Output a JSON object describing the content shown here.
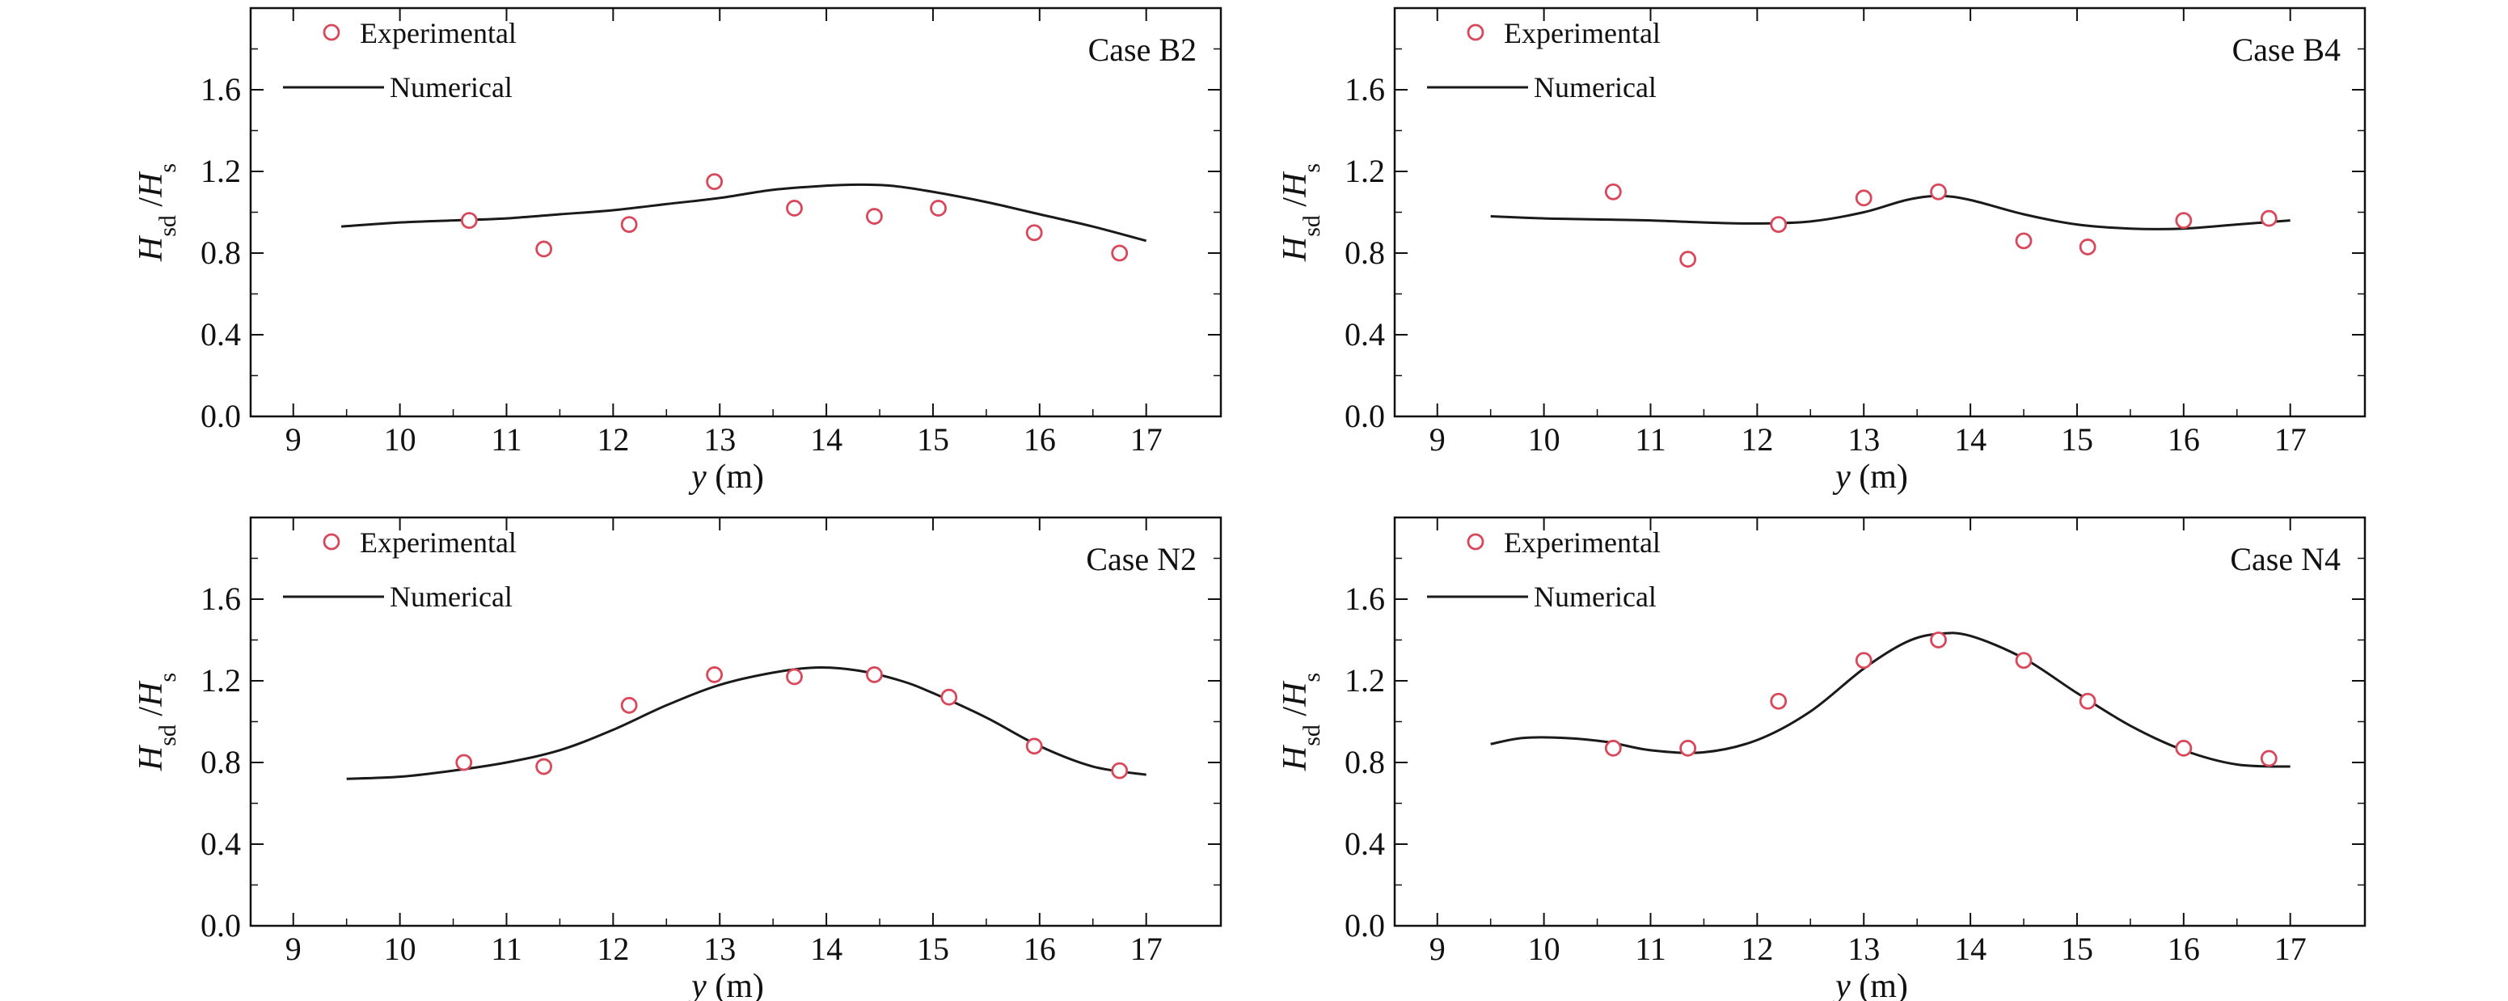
{
  "chart_data": [
    {
      "type": "scatter",
      "case_label": "Case B2",
      "xlabel": {
        "var": "y",
        "unit": " (m)"
      },
      "ylabel": {
        "main": "H",
        "sub1": "sd",
        "sep": " /",
        "main2": "H",
        "sub2": "s"
      },
      "xlim": [
        8.6,
        17.7
      ],
      "ylim": [
        0,
        2.0
      ],
      "xticks": [
        9,
        10,
        11,
        12,
        13,
        14,
        15,
        16,
        17
      ],
      "yticks": [
        0.0,
        0.4,
        0.8,
        1.2,
        1.6
      ],
      "ytick_labels": [
        "0.0",
        "0.4",
        "0.8",
        "1.2",
        "1.6"
      ],
      "legend": {
        "experimental": "Experimental",
        "numerical": "Numerical"
      },
      "experimental": {
        "x": [
          10.65,
          11.35,
          12.15,
          12.95,
          13.7,
          14.45,
          15.05,
          15.95,
          16.75
        ],
        "y": [
          0.96,
          0.82,
          0.94,
          1.15,
          1.02,
          0.98,
          1.02,
          0.9,
          0.8
        ]
      },
      "numerical": {
        "x": [
          9.45,
          10.0,
          10.5,
          11.0,
          11.5,
          12.0,
          12.5,
          13.0,
          13.5,
          14.0,
          14.3,
          14.6,
          15.0,
          15.5,
          16.0,
          16.5,
          17.0
        ],
        "y": [
          0.93,
          0.95,
          0.96,
          0.97,
          0.99,
          1.01,
          1.04,
          1.07,
          1.11,
          1.13,
          1.135,
          1.13,
          1.1,
          1.05,
          0.99,
          0.93,
          0.86
        ]
      }
    },
    {
      "type": "scatter",
      "case_label": "Case B4",
      "xlabel": {
        "var": "y",
        "unit": " (m)"
      },
      "ylabel": {
        "main": "H",
        "sub1": "sd",
        "sep": " /",
        "main2": "H",
        "sub2": "s"
      },
      "xlim": [
        8.6,
        17.7
      ],
      "ylim": [
        0,
        2.0
      ],
      "xticks": [
        9,
        10,
        11,
        12,
        13,
        14,
        15,
        16,
        17
      ],
      "yticks": [
        0.0,
        0.4,
        0.8,
        1.2,
        1.6
      ],
      "ytick_labels": [
        "0.0",
        "0.4",
        "0.8",
        "1.2",
        "1.6"
      ],
      "legend": {
        "experimental": "Experimental",
        "numerical": "Numerical"
      },
      "experimental": {
        "x": [
          10.65,
          11.35,
          12.2,
          13.0,
          13.7,
          14.5,
          15.1,
          16.0,
          16.8
        ],
        "y": [
          1.1,
          0.77,
          0.94,
          1.07,
          1.1,
          0.86,
          0.83,
          0.96,
          0.97
        ]
      },
      "numerical": {
        "x": [
          9.5,
          10.0,
          10.5,
          11.0,
          11.5,
          12.0,
          12.5,
          13.0,
          13.4,
          13.7,
          14.0,
          14.5,
          15.0,
          15.5,
          16.0,
          16.5,
          17.0
        ],
        "y": [
          0.98,
          0.97,
          0.965,
          0.96,
          0.95,
          0.945,
          0.955,
          1.0,
          1.06,
          1.08,
          1.06,
          0.99,
          0.94,
          0.92,
          0.92,
          0.94,
          0.96
        ]
      }
    },
    {
      "type": "scatter",
      "case_label": "Case N2",
      "xlabel": {
        "var": "y",
        "unit": " (m)"
      },
      "ylabel": {
        "main": "H",
        "sub1": "sd",
        "sep": " /",
        "main2": "H",
        "sub2": "s"
      },
      "xlim": [
        8.6,
        17.7
      ],
      "ylim": [
        0,
        2.0
      ],
      "xticks": [
        9,
        10,
        11,
        12,
        13,
        14,
        15,
        16,
        17
      ],
      "yticks": [
        0.0,
        0.4,
        0.8,
        1.2,
        1.6
      ],
      "ytick_labels": [
        "0.0",
        "0.4",
        "0.8",
        "1.2",
        "1.6"
      ],
      "legend": {
        "experimental": "Experimental",
        "numerical": "Numerical"
      },
      "experimental": {
        "x": [
          10.6,
          11.35,
          12.15,
          12.95,
          13.7,
          14.45,
          15.15,
          15.95,
          16.75
        ],
        "y": [
          0.8,
          0.78,
          1.08,
          1.23,
          1.22,
          1.23,
          1.12,
          0.88,
          0.76
        ]
      },
      "numerical": {
        "x": [
          9.5,
          10.0,
          10.5,
          11.0,
          11.5,
          12.0,
          12.5,
          13.0,
          13.5,
          13.9,
          14.3,
          14.7,
          15.0,
          15.5,
          16.0,
          16.5,
          17.0
        ],
        "y": [
          0.72,
          0.73,
          0.76,
          0.8,
          0.86,
          0.96,
          1.08,
          1.18,
          1.24,
          1.265,
          1.25,
          1.2,
          1.14,
          1.02,
          0.88,
          0.78,
          0.74
        ]
      }
    },
    {
      "type": "scatter",
      "case_label": "Case N4",
      "xlabel": {
        "var": "y",
        "unit": " (m)"
      },
      "ylabel": {
        "main": "H",
        "sub1": "sd",
        "sep": " /",
        "main2": "H",
        "sub2": "s"
      },
      "xlim": [
        8.6,
        17.7
      ],
      "ylim": [
        0,
        2.0
      ],
      "xticks": [
        9,
        10,
        11,
        12,
        13,
        14,
        15,
        16,
        17
      ],
      "yticks": [
        0.0,
        0.4,
        0.8,
        1.2,
        1.6
      ],
      "ytick_labels": [
        "0.0",
        "0.4",
        "0.8",
        "1.2",
        "1.6"
      ],
      "legend": {
        "experimental": "Experimental",
        "numerical": "Numerical"
      },
      "experimental": {
        "x": [
          10.65,
          11.35,
          12.2,
          13.0,
          13.7,
          14.5,
          15.1,
          16.0,
          16.8
        ],
        "y": [
          0.87,
          0.87,
          1.1,
          1.3,
          1.4,
          1.3,
          1.1,
          0.87,
          0.82
        ]
      },
      "numerical": {
        "x": [
          9.5,
          9.8,
          10.2,
          10.6,
          11.0,
          11.5,
          12.0,
          12.5,
          13.0,
          13.4,
          13.7,
          14.0,
          14.5,
          15.0,
          15.5,
          16.0,
          16.5,
          17.0
        ],
        "y": [
          0.89,
          0.92,
          0.92,
          0.9,
          0.86,
          0.85,
          0.91,
          1.05,
          1.26,
          1.39,
          1.43,
          1.42,
          1.31,
          1.14,
          0.98,
          0.86,
          0.79,
          0.78
        ]
      }
    }
  ],
  "style": {
    "marker_color": "#d9475a",
    "line_color": "#1a1a1a",
    "axis_color": "#111111"
  }
}
